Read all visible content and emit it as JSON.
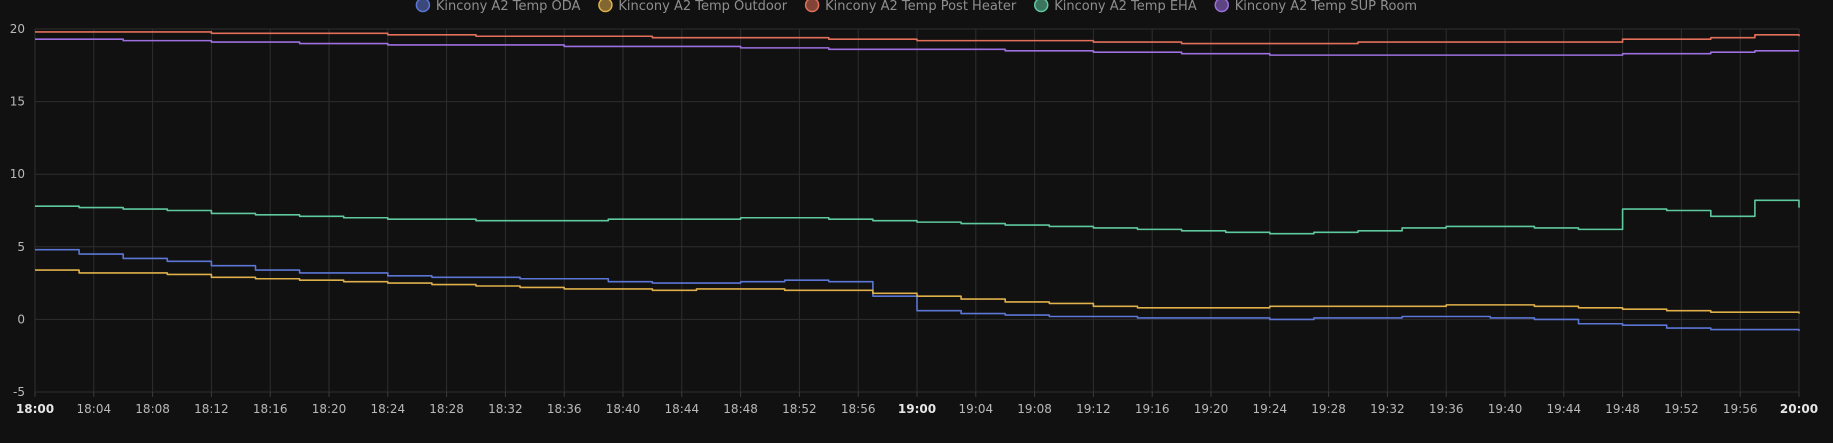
{
  "chart_data": {
    "type": "line",
    "x_ticks": [
      "18:00",
      "18:04",
      "18:08",
      "18:12",
      "18:16",
      "18:20",
      "18:24",
      "18:28",
      "18:32",
      "18:36",
      "18:40",
      "18:44",
      "18:48",
      "18:52",
      "18:56",
      "19:00",
      "19:04",
      "19:08",
      "19:12",
      "19:16",
      "19:20",
      "19:24",
      "19:28",
      "19:32",
      "19:36",
      "19:40",
      "19:44",
      "19:48",
      "19:52",
      "19:56",
      "20:00"
    ],
    "bold_ticks": [
      "18:00",
      "19:00",
      "20:00"
    ],
    "y_ticks": [
      20,
      15,
      10,
      5,
      0,
      -5
    ],
    "ylim": [
      -5,
      20
    ],
    "xlim_minutes": [
      0,
      120
    ],
    "grid": true,
    "legend_position": "top-center",
    "series": [
      {
        "name": "Kincony A2 Temp ODA",
        "color": "#5c76d6",
        "x": [
          0,
          3,
          6,
          9,
          12,
          15,
          18,
          21,
          24,
          27,
          30,
          33,
          36,
          39,
          42,
          45,
          48,
          51,
          54,
          57,
          60,
          63,
          66,
          69,
          72,
          75,
          78,
          81,
          84,
          87,
          90,
          93,
          96,
          99,
          102,
          105,
          108,
          111,
          114,
          117,
          120
        ],
        "y": [
          4.8,
          4.5,
          4.2,
          4.0,
          3.7,
          3.4,
          3.2,
          3.2,
          3.0,
          2.9,
          2.9,
          2.8,
          2.8,
          2.6,
          2.5,
          2.5,
          2.6,
          2.7,
          2.6,
          1.6,
          0.6,
          0.4,
          0.3,
          0.2,
          0.2,
          0.1,
          0.1,
          0.1,
          0.0,
          0.1,
          0.1,
          0.2,
          0.2,
          0.1,
          0.0,
          -0.3,
          -0.4,
          -0.6,
          -0.7,
          -0.7,
          -0.8
        ]
      },
      {
        "name": "Kincony A2 Temp Outdoor",
        "color": "#e0b04a",
        "x": [
          0,
          3,
          6,
          9,
          12,
          15,
          18,
          21,
          24,
          27,
          30,
          33,
          36,
          39,
          42,
          45,
          48,
          51,
          54,
          57,
          60,
          63,
          66,
          69,
          72,
          75,
          78,
          81,
          84,
          87,
          90,
          93,
          96,
          99,
          102,
          105,
          108,
          111,
          114,
          117,
          120
        ],
        "y": [
          3.4,
          3.2,
          3.2,
          3.1,
          2.9,
          2.8,
          2.7,
          2.6,
          2.5,
          2.4,
          2.3,
          2.2,
          2.1,
          2.1,
          2.0,
          2.1,
          2.1,
          2.0,
          2.0,
          1.8,
          1.6,
          1.4,
          1.2,
          1.1,
          0.9,
          0.8,
          0.8,
          0.8,
          0.9,
          0.9,
          0.9,
          0.9,
          1.0,
          1.0,
          0.9,
          0.8,
          0.7,
          0.6,
          0.5,
          0.5,
          0.4
        ]
      },
      {
        "name": "Kincony A2 Temp Post Heater",
        "color": "#e2705a",
        "x": [
          0,
          6,
          12,
          18,
          24,
          30,
          36,
          42,
          48,
          54,
          60,
          66,
          72,
          78,
          84,
          90,
          96,
          102,
          108,
          114,
          117,
          120
        ],
        "y": [
          19.8,
          19.8,
          19.7,
          19.7,
          19.6,
          19.5,
          19.5,
          19.4,
          19.4,
          19.3,
          19.2,
          19.2,
          19.1,
          19.0,
          19.0,
          19.1,
          19.1,
          19.1,
          19.3,
          19.4,
          19.6,
          19.5
        ]
      },
      {
        "name": "Kincony A2 Temp EHA",
        "color": "#5fc9a0",
        "x": [
          0,
          3,
          6,
          9,
          12,
          15,
          18,
          21,
          24,
          27,
          30,
          33,
          36,
          39,
          42,
          45,
          48,
          51,
          54,
          57,
          60,
          63,
          66,
          69,
          72,
          75,
          78,
          81,
          84,
          87,
          90,
          93,
          96,
          99,
          102,
          105,
          108,
          111,
          114,
          117,
          120
        ],
        "y": [
          7.8,
          7.7,
          7.6,
          7.5,
          7.3,
          7.2,
          7.1,
          7.0,
          6.9,
          6.9,
          6.8,
          6.8,
          6.8,
          6.9,
          6.9,
          6.9,
          7.0,
          7.0,
          6.9,
          6.8,
          6.7,
          6.6,
          6.5,
          6.4,
          6.3,
          6.2,
          6.1,
          6.0,
          5.9,
          6.0,
          6.1,
          6.3,
          6.4,
          6.4,
          6.3,
          6.2,
          7.6,
          7.5,
          7.1,
          8.2,
          7.7
        ]
      },
      {
        "name": "Kincony A2 Temp SUP Room",
        "color": "#9d6fe0",
        "x": [
          0,
          6,
          12,
          18,
          24,
          30,
          36,
          42,
          48,
          54,
          60,
          66,
          72,
          78,
          84,
          90,
          96,
          102,
          108,
          114,
          117,
          120
        ],
        "y": [
          19.3,
          19.2,
          19.1,
          19.0,
          18.9,
          18.9,
          18.8,
          18.8,
          18.7,
          18.6,
          18.6,
          18.5,
          18.4,
          18.3,
          18.2,
          18.2,
          18.2,
          18.2,
          18.3,
          18.4,
          18.5,
          18.5
        ]
      }
    ]
  }
}
